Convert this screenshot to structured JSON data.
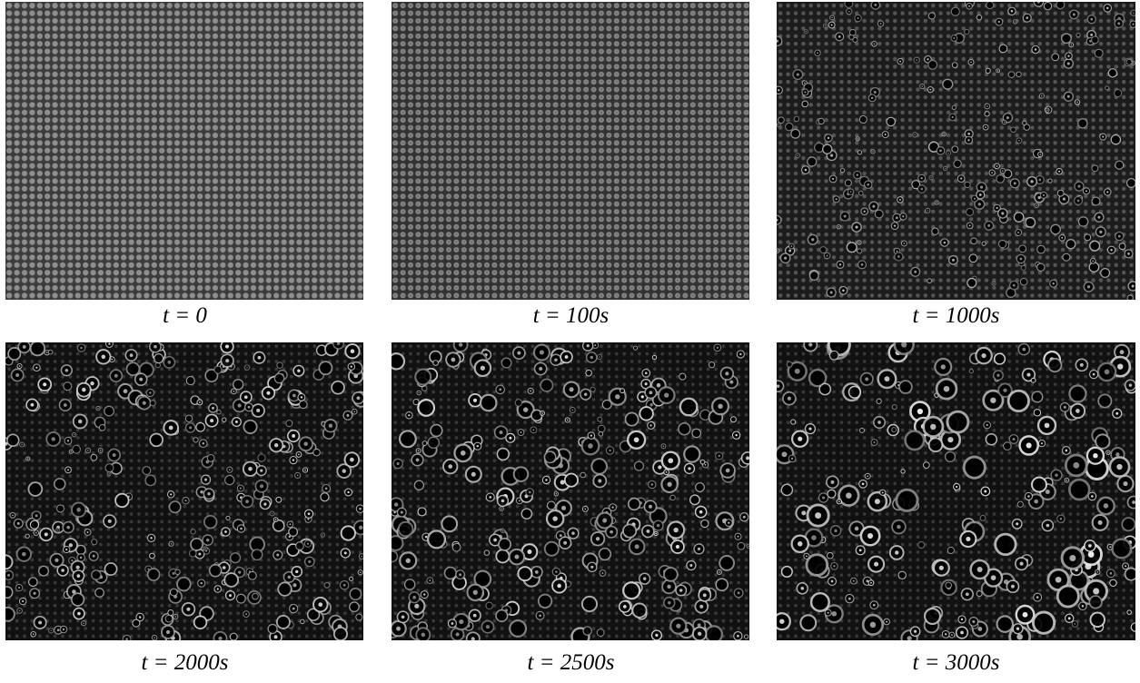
{
  "panels": [
    {
      "caption": "t = 0"
    },
    {
      "caption": "t = 100s"
    },
    {
      "caption": "t = 1000s"
    },
    {
      "caption": "t = 2000s"
    },
    {
      "caption": "t = 2500s"
    },
    {
      "caption": "t = 3000s"
    }
  ]
}
